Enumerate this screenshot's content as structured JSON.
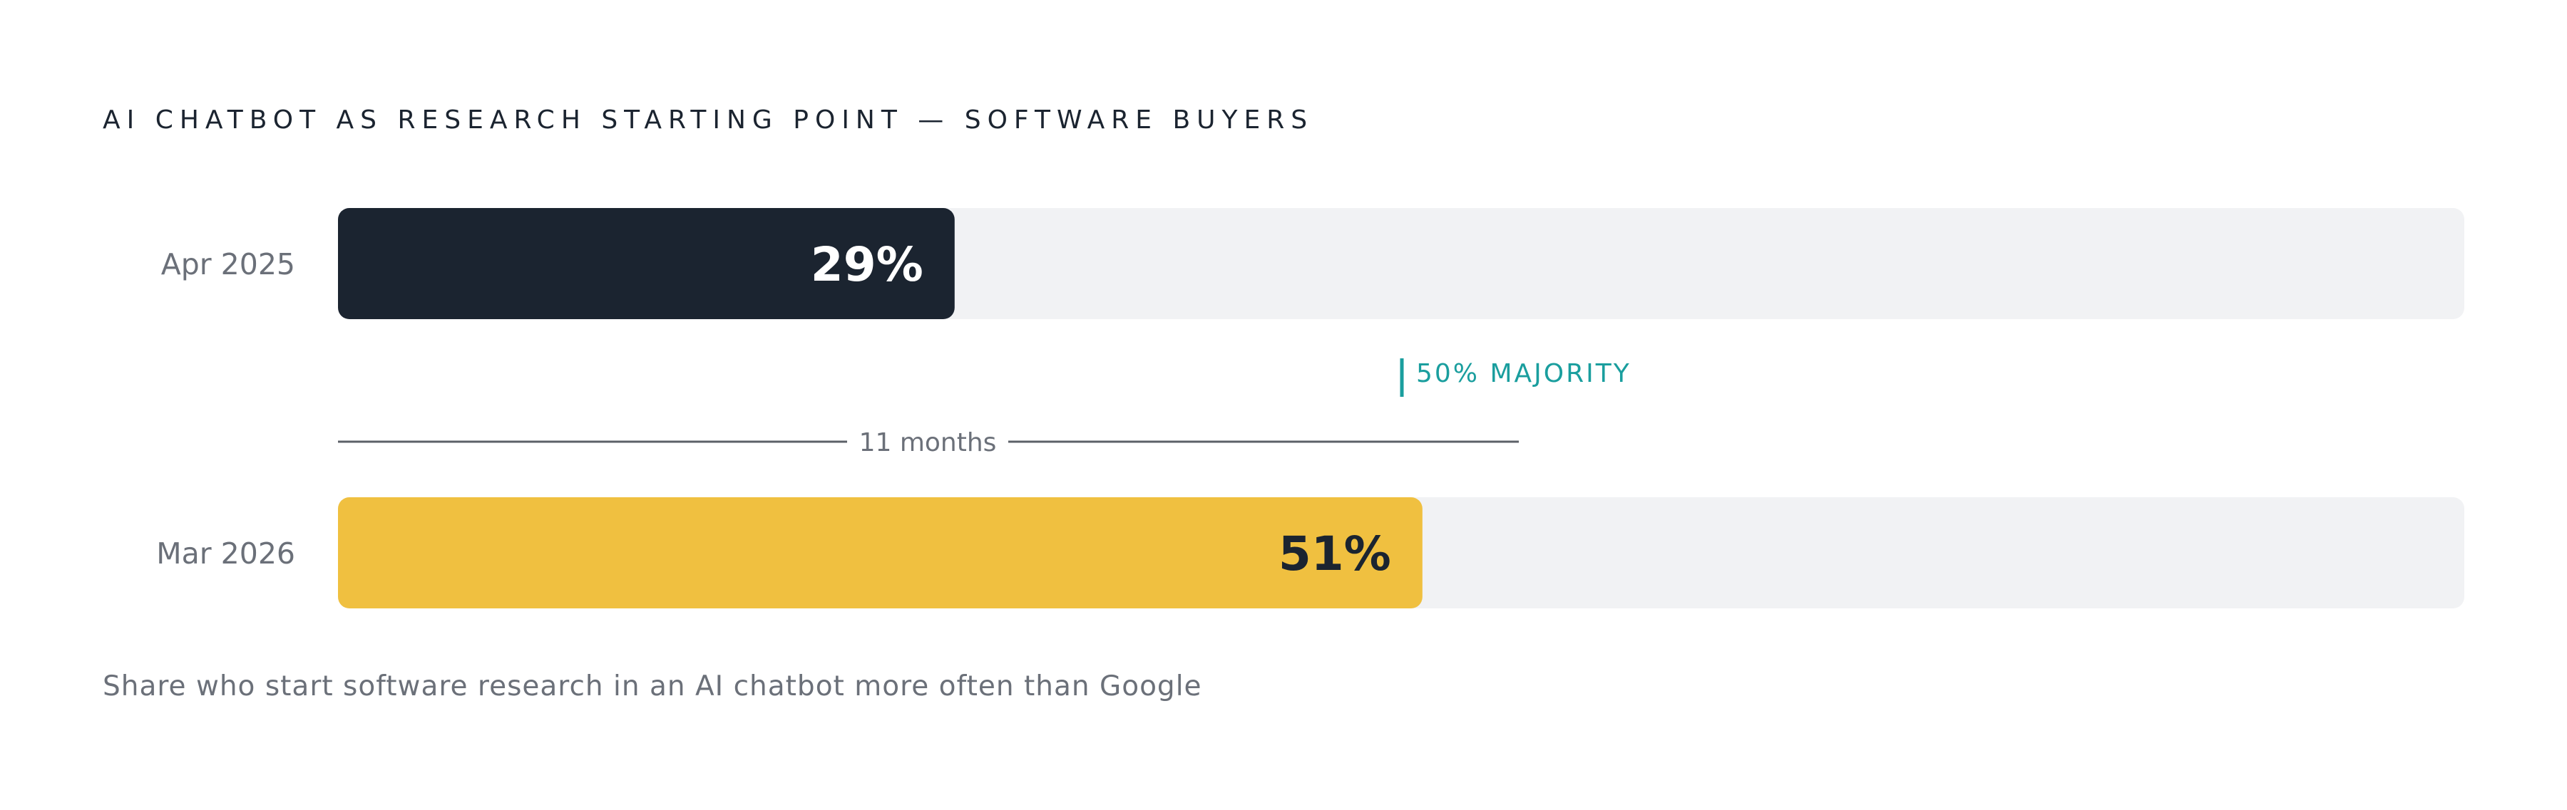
{
  "chart_data": {
    "type": "bar",
    "orientation": "horizontal",
    "title": "AI CHATBOT AS RESEARCH STARTING POINT — SOFTWARE BUYERS",
    "categories": [
      "Apr 2025",
      "Mar 2026"
    ],
    "values": [
      29,
      51
    ],
    "value_labels": [
      "29%",
      "51%"
    ],
    "xlim": [
      0,
      100
    ],
    "grid": false,
    "legend": "none",
    "reference_line": {
      "value": 50,
      "label": "50% MAJORITY"
    },
    "span_annotation": {
      "label": "11 months"
    },
    "footnote": "Share who start software research in an AI chatbot more often than Google"
  },
  "colors": {
    "track": "#f1f2f4",
    "bar_first": "#1b2430",
    "bar_second": "#f0c040",
    "label_on_dark": "#ffffff",
    "label_on_light": "#1b2430",
    "accent_teal": "#1a9e9e",
    "span_line": "#5c6168"
  }
}
